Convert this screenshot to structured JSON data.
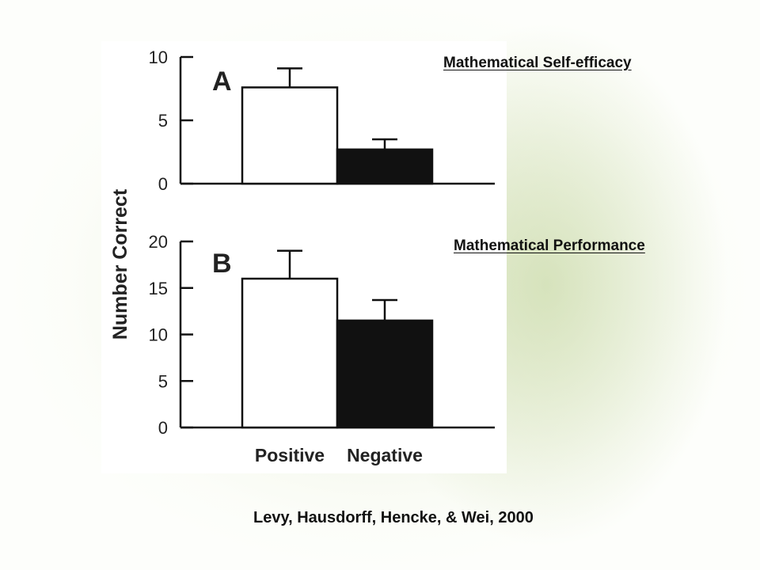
{
  "chart_data": [
    {
      "type": "bar",
      "panel_label": "A",
      "caption": "Mathematical Self-efficacy",
      "categories": [
        "Positive",
        "Negative"
      ],
      "values": [
        7.6,
        2.7
      ],
      "error_upper": [
        9.1,
        3.5
      ],
      "ylim": [
        0,
        10
      ],
      "yticks": [
        "0",
        "5",
        "10"
      ],
      "ylabel": "Number Correct",
      "bar_colors": [
        "#ffffff",
        "#111111"
      ]
    },
    {
      "type": "bar",
      "panel_label": "B",
      "caption": "Mathematical Performance",
      "categories": [
        "Positive",
        "Negative"
      ],
      "values": [
        16.0,
        11.5
      ],
      "error_upper": [
        19.0,
        13.7
      ],
      "ylim": [
        0,
        20
      ],
      "yticks": [
        "0",
        "5",
        "10",
        "15",
        "20"
      ],
      "ylabel": "Number Correct",
      "bar_colors": [
        "#ffffff",
        "#111111"
      ]
    }
  ],
  "citation": "Levy, Hausdorff, Hencke, & Wei, 2000"
}
